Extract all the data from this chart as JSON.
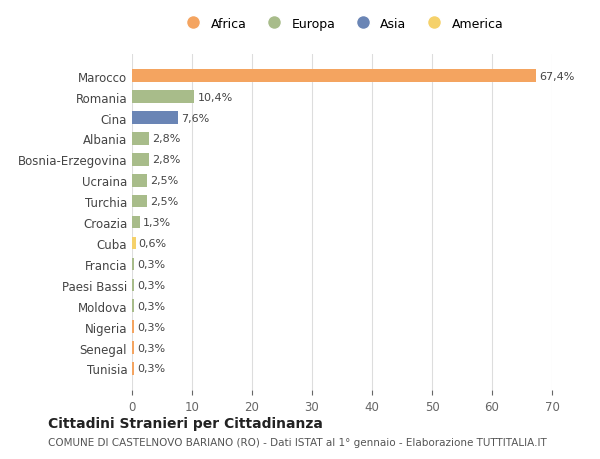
{
  "countries": [
    "Marocco",
    "Romania",
    "Cina",
    "Albania",
    "Bosnia-Erzegovina",
    "Ucraina",
    "Turchia",
    "Croazia",
    "Cuba",
    "Francia",
    "Paesi Bassi",
    "Moldova",
    "Nigeria",
    "Senegal",
    "Tunisia"
  ],
  "values": [
    67.4,
    10.4,
    7.6,
    2.8,
    2.8,
    2.5,
    2.5,
    1.3,
    0.6,
    0.3,
    0.3,
    0.3,
    0.3,
    0.3,
    0.3
  ],
  "labels": [
    "67,4%",
    "10,4%",
    "7,6%",
    "2,8%",
    "2,8%",
    "2,5%",
    "2,5%",
    "1,3%",
    "0,6%",
    "0,3%",
    "0,3%",
    "0,3%",
    "0,3%",
    "0,3%",
    "0,3%"
  ],
  "continents": [
    "Africa",
    "Europa",
    "Asia",
    "Europa",
    "Europa",
    "Europa",
    "Europa",
    "Europa",
    "America",
    "Europa",
    "Europa",
    "Europa",
    "Africa",
    "Africa",
    "Africa"
  ],
  "continent_colors": {
    "Africa": "#F4A460",
    "Europa": "#A8BC8A",
    "Asia": "#6A85B5",
    "America": "#F5D16A"
  },
  "legend_order": [
    "Africa",
    "Europa",
    "Asia",
    "America"
  ],
  "title": "Cittadini Stranieri per Cittadinanza",
  "subtitle": "COMUNE DI CASTELNOVO BARIANO (RO) - Dati ISTAT al 1° gennaio - Elaborazione TUTTITALIA.IT",
  "xlim": [
    0,
    70
  ],
  "xticks": [
    0,
    10,
    20,
    30,
    40,
    50,
    60,
    70
  ],
  "bg_color": "#ffffff",
  "grid_color": "#dddddd",
  "bar_height": 0.6,
  "figsize": [
    6.0,
    4.6
  ],
  "dpi": 100
}
